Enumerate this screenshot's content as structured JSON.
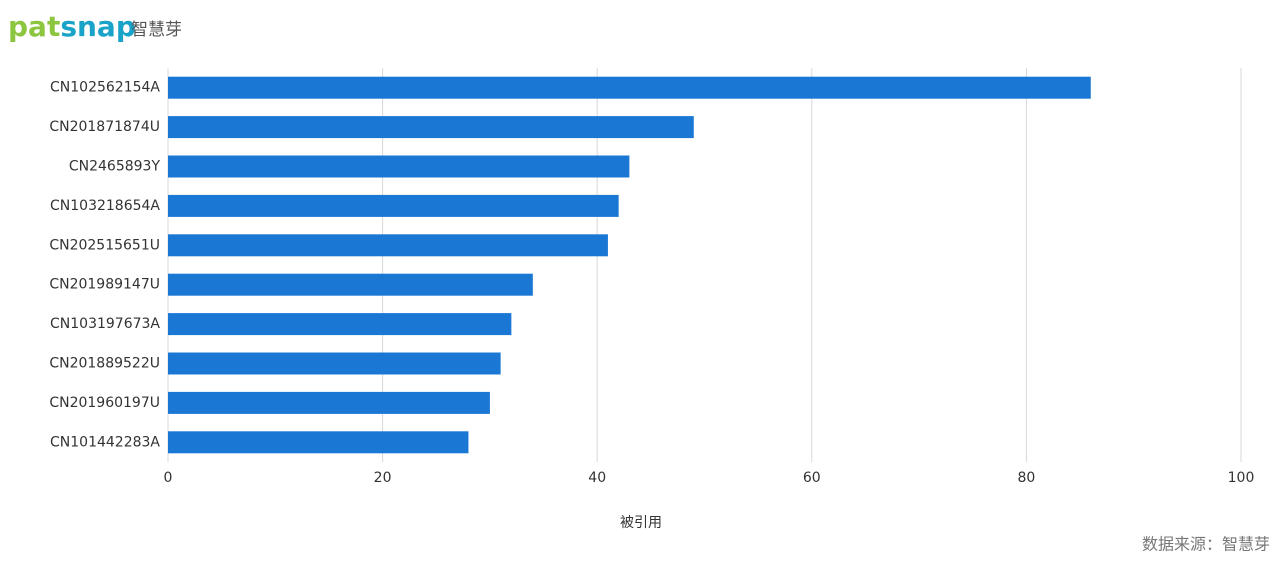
{
  "brand": {
    "logo": "patsnap",
    "name": "智慧芽"
  },
  "chart_data": {
    "type": "hbar",
    "categories": [
      "CN102562154A",
      "CN201871874U",
      "CN2465893Y",
      "CN103218654A",
      "CN202515651U",
      "CN201989147U",
      "CN103197673A",
      "CN201889522U",
      "CN201960197U",
      "CN101442283A"
    ],
    "values": [
      86,
      49,
      43,
      42,
      41,
      34,
      32,
      31,
      30,
      28
    ],
    "color": "#1a78d4",
    "xlim": [
      0,
      100
    ],
    "xticks": [
      0,
      20,
      40,
      60,
      80,
      100
    ],
    "x_label": "被引用",
    "grid": true
  },
  "source": "数据来源：智慧芽"
}
